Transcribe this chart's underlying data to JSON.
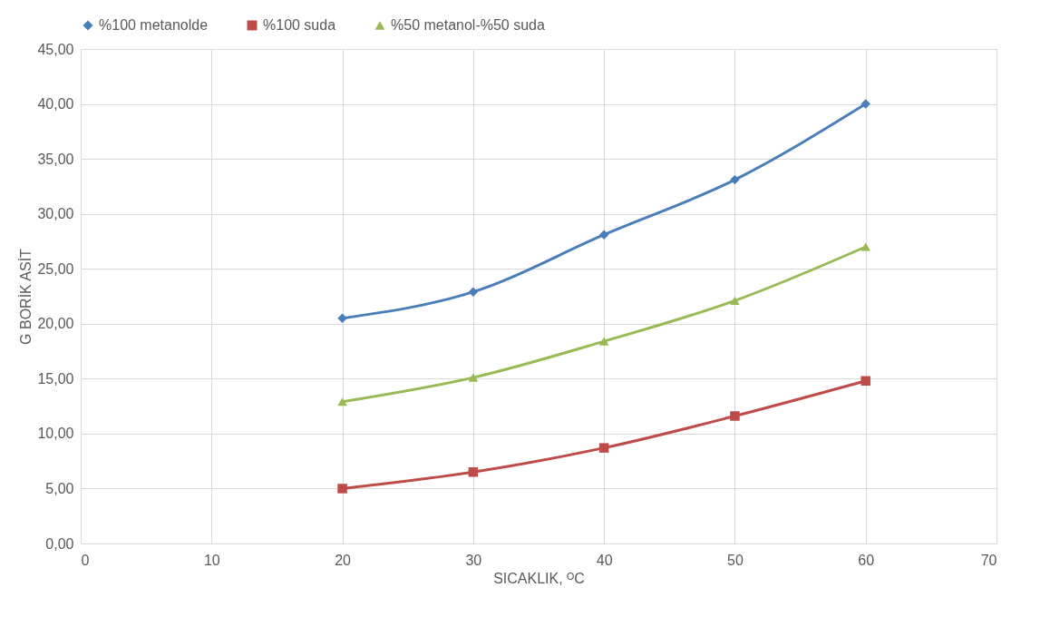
{
  "chart_data": {
    "type": "line",
    "xlabel": "SICAKLIK, ᴼC",
    "ylabel": "G BORİK ASİT",
    "x": [
      20,
      30,
      40,
      50,
      60
    ],
    "series": [
      {
        "name": "%100 metanolde",
        "color": "#4a7ebb",
        "marker": "diamond",
        "values": [
          20.5,
          22.9,
          28.1,
          33.1,
          40.0
        ]
      },
      {
        "name": "%100 suda",
        "color": "#be4b48",
        "marker": "square",
        "values": [
          5.0,
          6.5,
          8.7,
          11.6,
          14.8
        ]
      },
      {
        "name": "%50 metanol-%50 suda",
        "color": "#98b954",
        "marker": "triangle",
        "values": [
          12.9,
          15.1,
          18.4,
          22.1,
          27.0
        ]
      }
    ],
    "xlim": [
      0,
      70
    ],
    "xticks": [
      0,
      10,
      20,
      30,
      40,
      50,
      60,
      70
    ],
    "ylim": [
      0,
      45
    ],
    "yticks": [
      {
        "value": 0,
        "label": "0,00"
      },
      {
        "value": 5,
        "label": "5,00"
      },
      {
        "value": 10,
        "label": "10,00"
      },
      {
        "value": 15,
        "label": "15,00"
      },
      {
        "value": 20,
        "label": "20,00"
      },
      {
        "value": 25,
        "label": "25,00"
      },
      {
        "value": 30,
        "label": "30,00"
      },
      {
        "value": 35,
        "label": "35,00"
      },
      {
        "value": 40,
        "label": "40,00"
      },
      {
        "value": 45,
        "label": "45,00"
      }
    ],
    "grid": true,
    "legend": "top",
    "line_style": "solid"
  }
}
